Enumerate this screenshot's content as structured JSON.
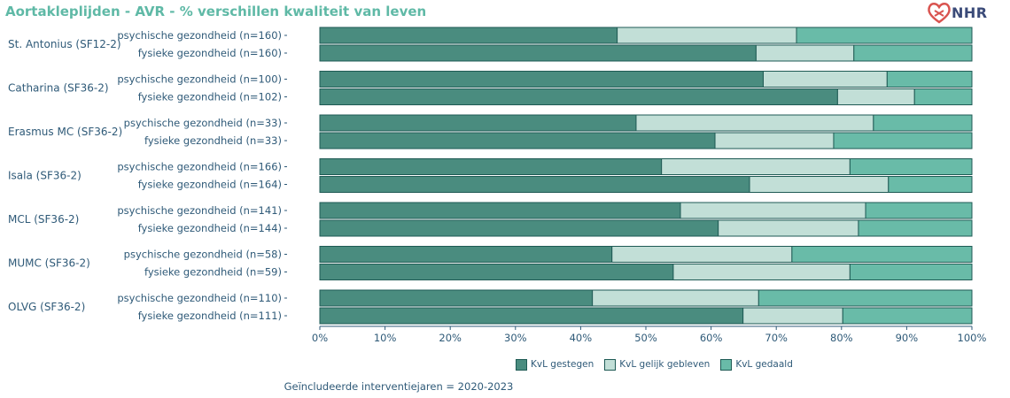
{
  "title": "Aortakleplijden - AVR - % verschillen kwaliteit van leven",
  "logo_text": "NHR",
  "footnote": "Geïncludeerde interventiejaren = 2020-2023",
  "colors": {
    "gestegen": "#4a8c7f",
    "gelijk": "#c2dfd7",
    "gedaald": "#69bba8",
    "border": "#1e5a54",
    "text": "#2f5a78",
    "title": "#5fb9a6"
  },
  "chart_data": {
    "type": "bar",
    "orientation": "horizontal",
    "stacked": true,
    "xlim": [
      0,
      100
    ],
    "x_ticks": [
      "0%",
      "10%",
      "20%",
      "30%",
      "40%",
      "50%",
      "60%",
      "70%",
      "80%",
      "90%",
      "100%"
    ],
    "legend_position": "bottom",
    "series": [
      {
        "key": "gestegen",
        "name": "KvL gestegen"
      },
      {
        "key": "gelijk",
        "name": "KvL gelijk gebleven"
      },
      {
        "key": "gedaald",
        "name": "KvL gedaald"
      }
    ],
    "groups": [
      {
        "name": "St. Antonius (SF12-2)",
        "bars": [
          {
            "label": "psychische gezondheid (n=160)",
            "values": [
              45.6,
              27.5,
              26.9
            ]
          },
          {
            "label": "fysieke gezondheid (n=160)",
            "values": [
              66.9,
              15.0,
              18.1
            ]
          }
        ]
      },
      {
        "name": "Catharina (SF36-2)",
        "bars": [
          {
            "label": "psychische gezondheid (n=100)",
            "values": [
              68.0,
              19.0,
              13.0
            ]
          },
          {
            "label": "fysieke gezondheid (n=102)",
            "values": [
              79.4,
              11.8,
              8.8
            ]
          }
        ]
      },
      {
        "name": "Erasmus MC (SF36-2)",
        "bars": [
          {
            "label": "psychische gezondheid (n=33)",
            "values": [
              48.5,
              36.4,
              15.1
            ]
          },
          {
            "label": "fysieke gezondheid (n=33)",
            "values": [
              60.6,
              18.2,
              21.2
            ]
          }
        ]
      },
      {
        "name": "Isala (SF36-2)",
        "bars": [
          {
            "label": "psychische gezondheid (n=166)",
            "values": [
              52.4,
              28.9,
              18.7
            ]
          },
          {
            "label": "fysieke gezondheid (n=164)",
            "values": [
              65.9,
              21.3,
              12.8
            ]
          }
        ]
      },
      {
        "name": "MCL (SF36-2)",
        "bars": [
          {
            "label": "psychische gezondheid (n=141)",
            "values": [
              55.3,
              28.4,
              16.3
            ]
          },
          {
            "label": "fysieke gezondheid (n=144)",
            "values": [
              61.1,
              21.5,
              17.4
            ]
          }
        ]
      },
      {
        "name": "MUMC (SF36-2)",
        "bars": [
          {
            "label": "psychische gezondheid (n=58)",
            "values": [
              44.8,
              27.6,
              27.6
            ]
          },
          {
            "label": "fysieke gezondheid (n=59)",
            "values": [
              54.2,
              27.1,
              18.7
            ]
          }
        ]
      },
      {
        "name": "OLVG (SF36-2)",
        "bars": [
          {
            "label": "psychische gezondheid (n=110)",
            "values": [
              41.8,
              25.5,
              32.7
            ]
          },
          {
            "label": "fysieke gezondheid (n=111)",
            "values": [
              64.9,
              15.3,
              19.8
            ]
          }
        ]
      }
    ]
  }
}
